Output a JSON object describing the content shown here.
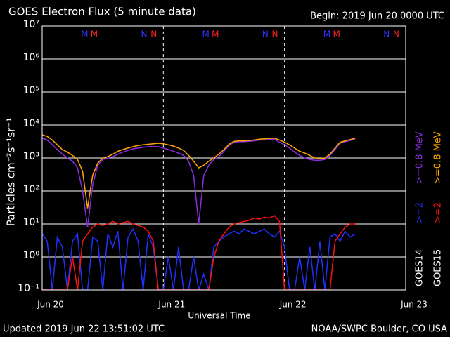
{
  "chart_data": {
    "type": "line",
    "title": "GOES Electron Flux (5 minute data)",
    "begin": "Begin: 2019 Jun 20 0000 UTC",
    "xlabel": "Universal Time",
    "ylabel": "Particles cm⁻²s⁻¹sr⁻¹",
    "updated": "Updated 2019 Jun 22 13:51:02 UTC",
    "credit": "NOAA/SWPC Boulder, CO USA",
    "log_y": true,
    "grid": true,
    "threshold": 1000,
    "xlim": [
      0,
      72
    ],
    "xticks": [
      {
        "value": 0,
        "label": "Jun 20"
      },
      {
        "value": 24,
        "label": "Jun 21"
      },
      {
        "value": 48,
        "label": "Jun 22"
      },
      {
        "value": 72,
        "label": "Jun 23"
      }
    ],
    "ylim": [
      0.1,
      10000000
    ],
    "yticks": [
      {
        "value": 0.1,
        "label": "10⁻¹"
      },
      {
        "value": 1,
        "label": "10⁰"
      },
      {
        "value": 10,
        "label": "10¹"
      },
      {
        "value": 100,
        "label": "10²"
      },
      {
        "value": 1000,
        "label": "10³"
      },
      {
        "value": 10000,
        "label": "10⁴"
      },
      {
        "value": 100000,
        "label": "10⁵"
      },
      {
        "value": 1000000,
        "label": "10⁶"
      },
      {
        "value": 10000000,
        "label": "10⁷"
      }
    ],
    "legend_groups": [
      "GOES14",
      "GOES15"
    ],
    "markers": [
      {
        "label": "M",
        "x": 8.4,
        "color": "#3333ff"
      },
      {
        "label": "M",
        "x": 10.3,
        "color": "#ff2020"
      },
      {
        "label": "N",
        "x": 20.2,
        "color": "#3333ff"
      },
      {
        "label": "N",
        "x": 22.1,
        "color": "#ff2020"
      },
      {
        "label": "M",
        "x": 32.4,
        "color": "#3333ff"
      },
      {
        "label": "M",
        "x": 34.3,
        "color": "#ff2020"
      },
      {
        "label": "N",
        "x": 44.2,
        "color": "#3333ff"
      },
      {
        "label": "N",
        "x": 46.1,
        "color": "#ff2020"
      },
      {
        "label": "M",
        "x": 56.4,
        "color": "#3333ff"
      },
      {
        "label": "M",
        "x": 58.3,
        "color": "#ff2020"
      },
      {
        "label": "N",
        "x": 68.2,
        "color": "#3333ff"
      },
      {
        "label": "N",
        "x": 70.1,
        "color": "#ff2020"
      }
    ],
    "x": [
      0,
      1,
      2,
      3,
      4,
      5,
      6,
      7,
      8,
      9,
      10,
      11,
      12,
      13,
      14,
      15,
      16,
      17,
      18,
      19,
      20,
      21,
      22,
      23,
      24,
      25,
      26,
      27,
      28,
      29,
      30,
      31,
      32,
      33,
      34,
      35,
      36,
      37,
      38,
      39,
      40,
      41,
      42,
      43,
      44,
      45,
      46,
      47,
      48,
      49,
      50,
      51,
      52,
      53,
      54,
      55,
      56,
      57,
      58,
      59,
      60,
      61,
      62
    ],
    "series": [
      {
        "name": ">=2",
        "group": 0,
        "color": "#2030ff",
        "values": [
          5,
          3,
          0.1,
          4,
          2,
          0.1,
          3,
          5,
          0.1,
          0.1,
          4,
          3,
          0.1,
          5,
          2,
          6,
          0.1,
          4,
          7,
          3,
          0.1,
          5,
          2,
          0.1,
          0.1,
          1,
          0.1,
          2,
          0.1,
          0.1,
          1,
          0.1,
          0.3,
          0.1,
          2,
          3,
          4,
          5,
          6,
          5,
          7,
          6,
          5,
          6,
          7,
          5,
          4,
          6,
          2,
          0.1,
          0.1,
          1,
          0.1,
          2,
          0.1,
          3,
          0.1,
          4,
          5,
          3,
          6,
          4,
          5
        ]
      },
      {
        "name": ">=2",
        "group": 1,
        "color": "#ff1010",
        "values": [
          0.1,
          0.1,
          0.1,
          0.1,
          0.1,
          0.1,
          1,
          0.1,
          3,
          5,
          8,
          10,
          9,
          10,
          12,
          10,
          11,
          12,
          10,
          9,
          8,
          6,
          3,
          0.1,
          0.1,
          0.1,
          0.1,
          0.1,
          0.1,
          0.1,
          0.1,
          0.1,
          0.1,
          0.1,
          1,
          3,
          5,
          8,
          10,
          11,
          12,
          13,
          15,
          14,
          16,
          15,
          18,
          12,
          0.1,
          0.1,
          0.1,
          0.1,
          0.1,
          0.1,
          0.1,
          0.1,
          0.1,
          0.1,
          3,
          5,
          8,
          10,
          10
        ]
      },
      {
        "name": ">=0.8 MeV",
        "group": 0,
        "color": "#8a2be2",
        "values": [
          4000,
          3500,
          2500,
          1800,
          1300,
          1000,
          800,
          500,
          100,
          8,
          150,
          600,
          900,
          1000,
          1100,
          1300,
          1500,
          1700,
          1900,
          2000,
          2100,
          2200,
          2200,
          2200,
          2000,
          1800,
          1600,
          1400,
          1200,
          800,
          300,
          10,
          300,
          600,
          900,
          1100,
          1600,
          2400,
          3000,
          3100,
          3100,
          3200,
          3300,
          3500,
          3500,
          3600,
          3700,
          3000,
          2500,
          2000,
          1500,
          1200,
          1000,
          900,
          850,
          850,
          900,
          1200,
          1800,
          2800,
          3100,
          3400,
          3800
        ]
      },
      {
        "name": ">=0.8 MeV",
        "group": 1,
        "color": "#ffa500",
        "values": [
          5000,
          4500,
          3500,
          2500,
          1800,
          1500,
          1200,
          900,
          400,
          30,
          300,
          700,
          1000,
          1100,
          1300,
          1600,
          1800,
          2000,
          2200,
          2400,
          2500,
          2600,
          2700,
          2800,
          2700,
          2500,
          2300,
          2000,
          1700,
          1200,
          800,
          500,
          600,
          800,
          1000,
          1300,
          1800,
          2600,
          3200,
          3300,
          3300,
          3400,
          3500,
          3700,
          3800,
          3900,
          4000,
          3500,
          3000,
          2500,
          2000,
          1600,
          1400,
          1200,
          1000,
          950,
          1000,
          1300,
          2000,
          3000,
          3300,
          3600,
          4000
        ]
      }
    ]
  }
}
